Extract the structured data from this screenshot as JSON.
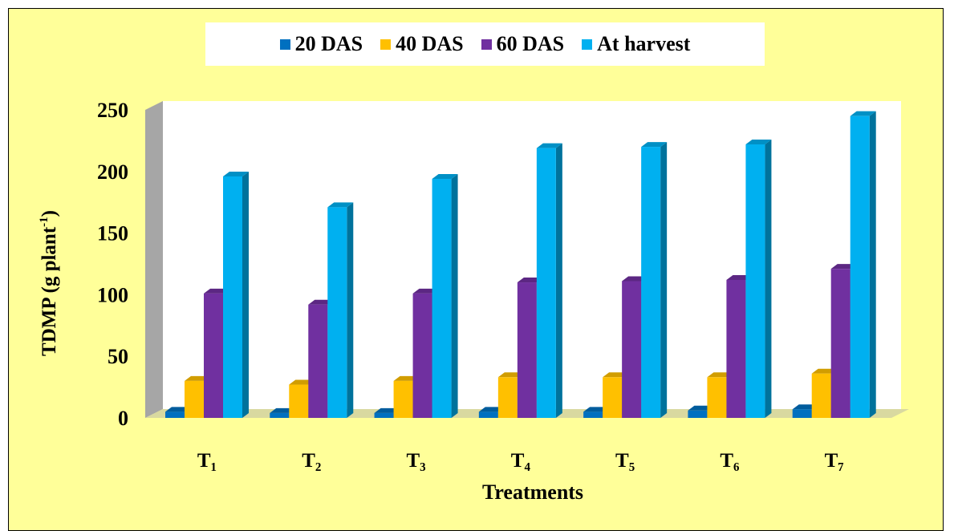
{
  "chart_data": {
    "type": "bar",
    "title": "",
    "xlabel": "Treatments",
    "ylabel_main": "TDMP (g plant",
    "ylabel_sup": "-1",
    "ylabel_close": ")",
    "ylim": [
      0,
      250
    ],
    "yticks": [
      "0",
      "50",
      "100",
      "150",
      "200",
      "250"
    ],
    "categories": [
      "T₁",
      "T₂",
      "T₃",
      "T₄",
      "T₅",
      "T₆",
      "T₇"
    ],
    "legend_position": "top",
    "grid": false,
    "series": [
      {
        "name": "20 DAS",
        "values": [
          5,
          4,
          4,
          5,
          5,
          6,
          7
        ],
        "color": "#0070c0"
      },
      {
        "name": "40 DAS",
        "values": [
          30,
          27,
          30,
          33,
          33,
          33,
          36
        ],
        "color": "#ffc000"
      },
      {
        "name": "60 DAS",
        "values": [
          101,
          92,
          101,
          110,
          111,
          112,
          121
        ],
        "color": "#7030a0"
      },
      {
        "name": "At harvest",
        "values": [
          196,
          171,
          194,
          219,
          220,
          222,
          245
        ],
        "color": "#00b0f0"
      }
    ]
  }
}
